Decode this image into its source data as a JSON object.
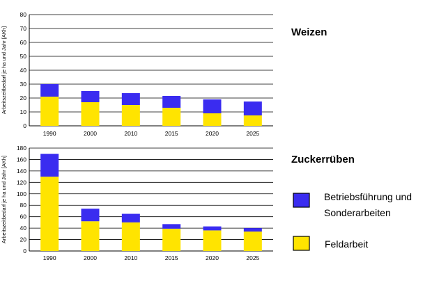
{
  "colors": {
    "feldarbeit": "#ffe400",
    "betrieb": "#3a2cf0",
    "grid": "#000000",
    "axis": "#000000"
  },
  "legend": {
    "betrieb_line1": "Betriebsführung und",
    "betrieb_line2": "Sonderarbeiten",
    "feldarbeit": "Feldarbeit"
  },
  "chart_data": [
    {
      "type": "bar",
      "stacked": true,
      "title": "Weizen",
      "ylabel": "Arbeitszeitbedarf je ha und Jahr [AKh]",
      "xlabel": "",
      "ylim": [
        0,
        80
      ],
      "yticks": [
        0,
        10,
        20,
        30,
        40,
        50,
        60,
        70,
        80
      ],
      "grid": true,
      "categories": [
        "1990",
        "2000",
        "2010",
        "2015",
        "2020",
        "2025"
      ],
      "series": [
        {
          "name": "Feldarbeit",
          "values": [
            21,
            17,
            15,
            13,
            9,
            7.5
          ]
        },
        {
          "name": "Betriebsführung und Sonderarbeiten",
          "values": [
            9,
            8,
            8.5,
            8.5,
            10,
            10
          ]
        }
      ]
    },
    {
      "type": "bar",
      "stacked": true,
      "title": "Zuckerrüben",
      "ylabel": "Arbeitszeitbedarf je ha und Jahr [AKh]",
      "xlabel": "",
      "ylim": [
        0,
        180
      ],
      "yticks": [
        0,
        20,
        40,
        60,
        80,
        100,
        120,
        140,
        160,
        180
      ],
      "grid": true,
      "categories": [
        "1990",
        "2000",
        "2010",
        "2015",
        "2020",
        "2025"
      ],
      "series": [
        {
          "name": "Feldarbeit",
          "values": [
            130,
            52,
            50,
            39,
            36,
            34
          ]
        },
        {
          "name": "Betriebsführung und Sonderarbeiten",
          "values": [
            40,
            22,
            15,
            8,
            7,
            6
          ]
        }
      ]
    }
  ]
}
